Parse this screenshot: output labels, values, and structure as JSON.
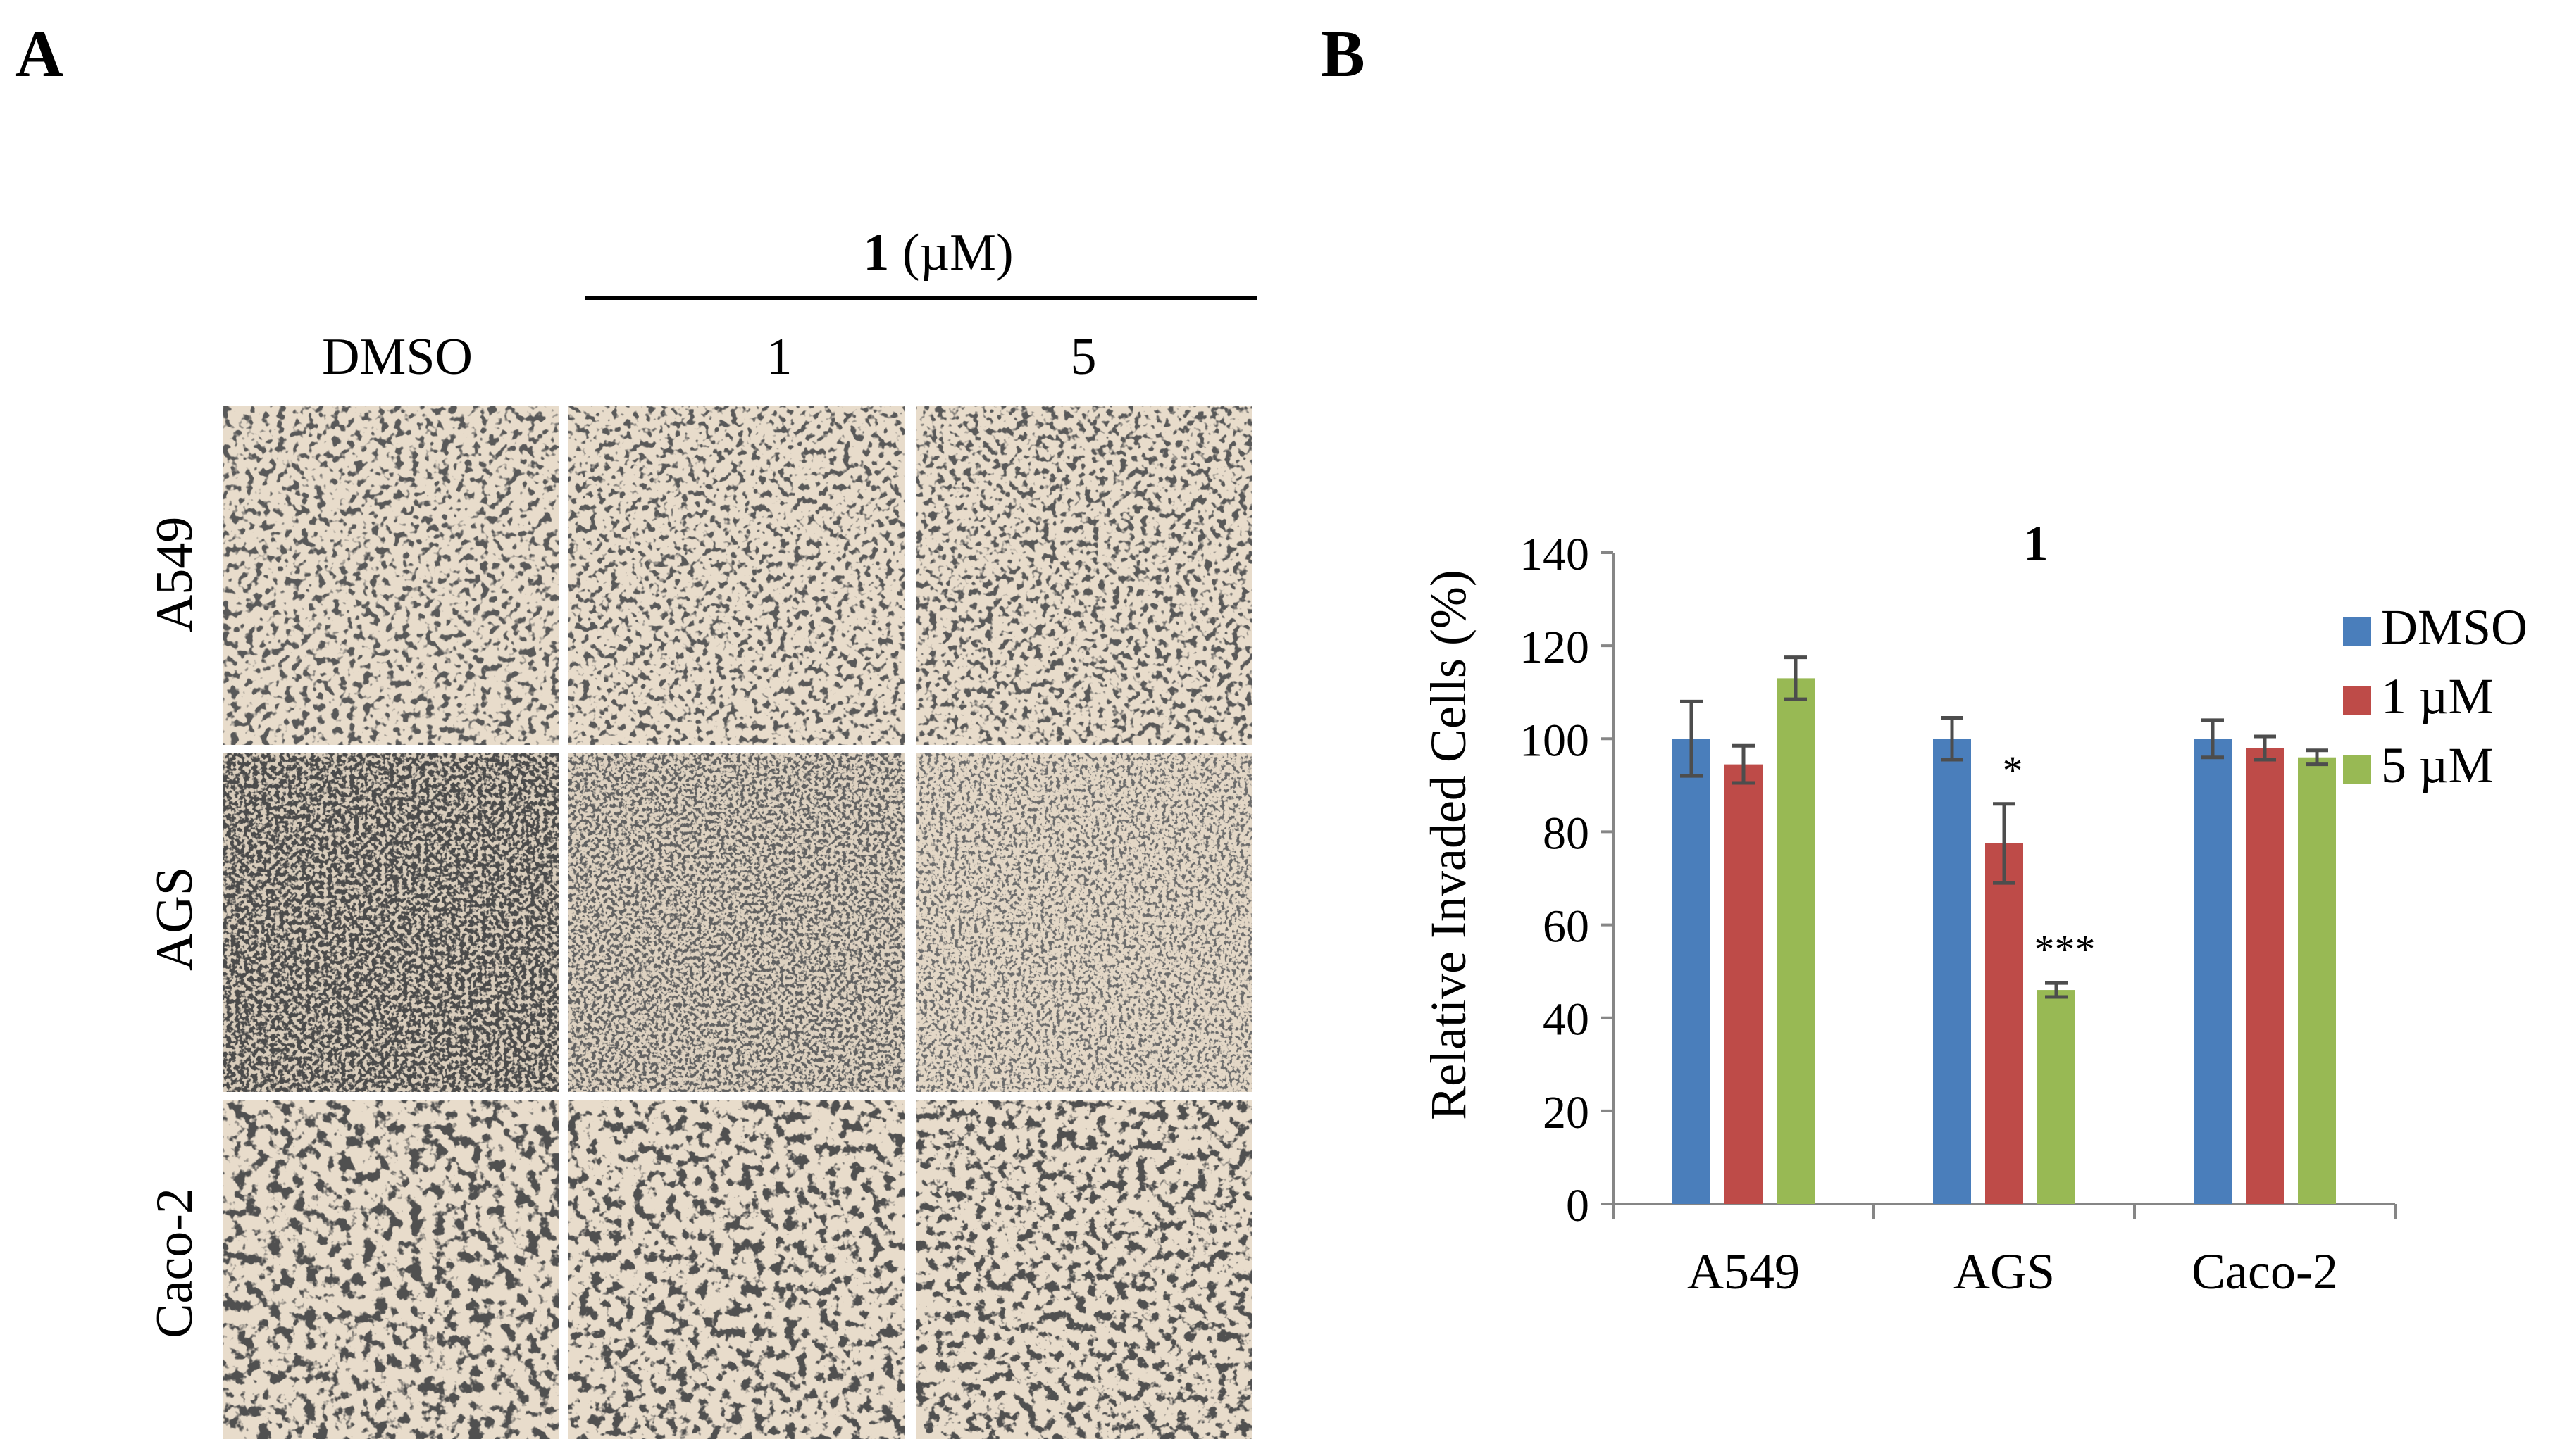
{
  "panel_a": {
    "letter": "A",
    "compound_label": "1",
    "compound_unit": " (µM)",
    "column_labels": [
      "DMSO",
      "1",
      "5"
    ],
    "row_labels": [
      "A549",
      "AGS",
      "Caco-2"
    ]
  },
  "panel_b": {
    "letter": "B"
  },
  "colors": {
    "DMSO": "#4a7ebb",
    "1 µM": "#be4b48",
    "5 µM": "#98b954",
    "micrograph_background": "#e8dccb",
    "micrograph_cells": "#1a1a1a"
  },
  "chart_data": {
    "type": "bar",
    "title": "1",
    "xlabel": "",
    "ylabel": "Relative Invaded Cells (%)",
    "ylim": [
      0,
      140
    ],
    "yticks": [
      0,
      20,
      40,
      60,
      80,
      100,
      120,
      140
    ],
    "categories": [
      "A549",
      "AGS",
      "Caco-2"
    ],
    "series": [
      {
        "name": "DMSO",
        "values": [
          100,
          100,
          100
        ],
        "errors": [
          8,
          4.5,
          4
        ]
      },
      {
        "name": "1 µM",
        "values": [
          94.5,
          77.5,
          98
        ],
        "errors": [
          4,
          8.5,
          2.5
        ]
      },
      {
        "name": "5 µM",
        "values": [
          113,
          46,
          96
        ],
        "errors": [
          4.5,
          1.5,
          1.5
        ]
      }
    ],
    "significance": [
      {
        "category": "AGS",
        "series": "1 µM",
        "label": "*"
      },
      {
        "category": "AGS",
        "series": "5 µM",
        "label": "***"
      }
    ],
    "legend_position": "right",
    "grid": false
  }
}
